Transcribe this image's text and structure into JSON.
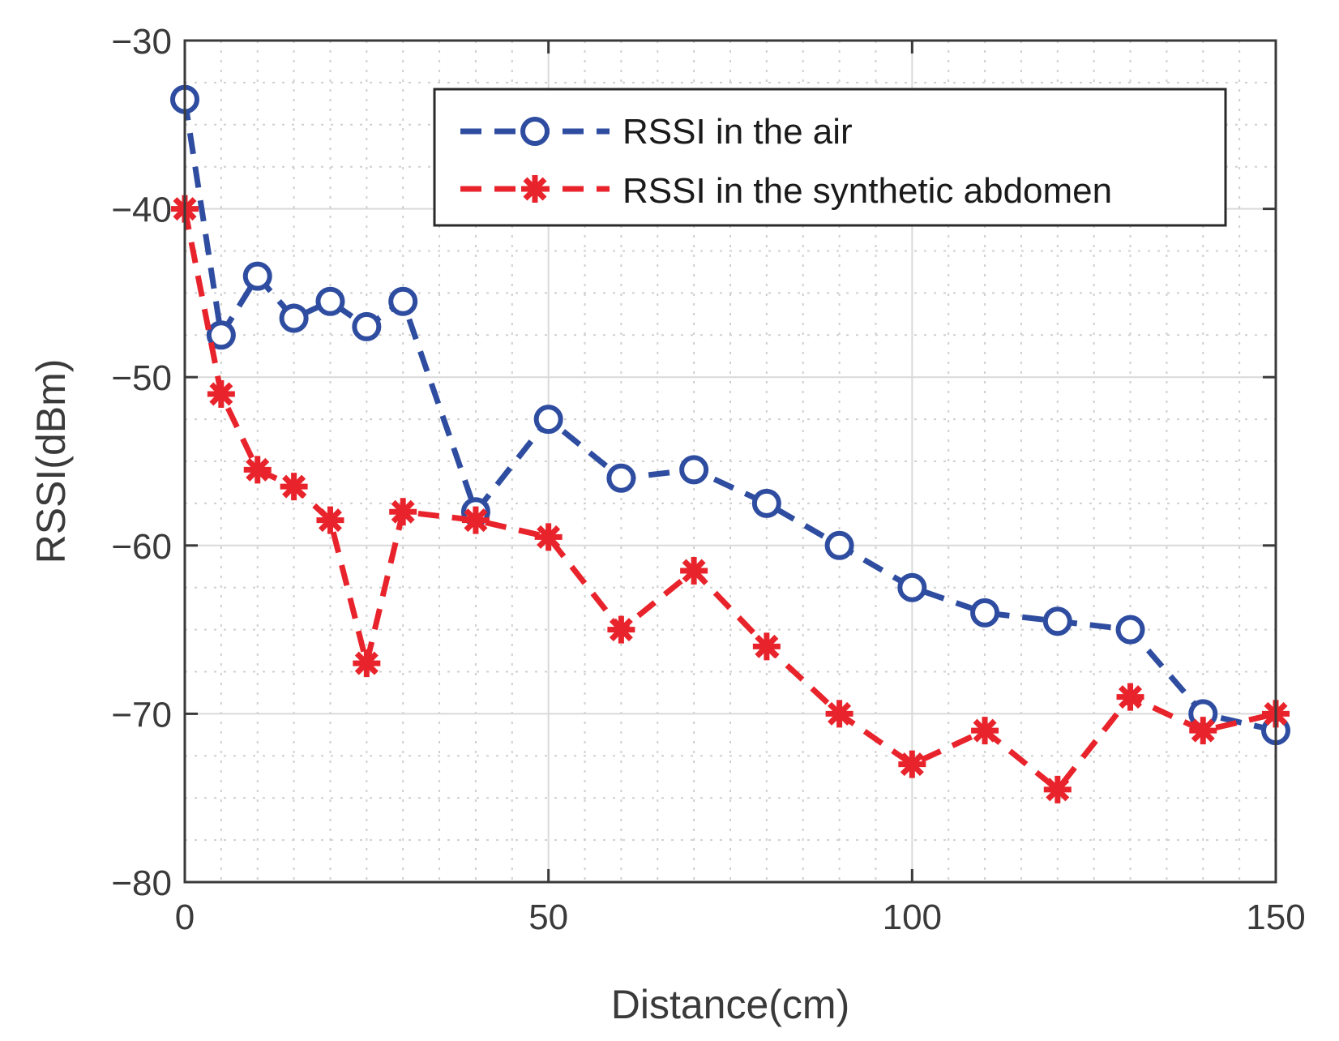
{
  "chart_data": {
    "type": "line",
    "title": "",
    "xlabel": "Distance(cm)",
    "ylabel": "RSSI(dBm)",
    "xlim": [
      0,
      150
    ],
    "ylim": [
      -80,
      -30
    ],
    "xticks": [
      0,
      50,
      100,
      150
    ],
    "xtick_labels": [
      "0",
      "50",
      "100",
      "150"
    ],
    "yticks": [
      -30,
      -40,
      -50,
      -60,
      -70,
      -80
    ],
    "ytick_labels": [
      "−30",
      "−40",
      "−50",
      "−60",
      "−70",
      "−80"
    ],
    "grid": true,
    "legend_position": "top-right",
    "series": [
      {
        "name": "RSSI in the air",
        "color": "#2f4da0",
        "marker": "circle",
        "line_style": "dashed",
        "x": [
          0,
          5,
          10,
          15,
          20,
          25,
          30,
          40,
          50,
          60,
          70,
          80,
          90,
          100,
          110,
          120,
          130,
          140,
          150
        ],
        "values": [
          -33.5,
          -47.5,
          -44,
          -46.5,
          -45.5,
          -47,
          -45.5,
          -58,
          -52.5,
          -56,
          -55.5,
          -57.5,
          -60,
          -62.5,
          -64,
          -64.5,
          -65,
          -70,
          -71
        ]
      },
      {
        "name": "RSSI in the synthetic abdomen",
        "color": "#e8232b",
        "marker": "asterisk",
        "line_style": "dashed",
        "x": [
          0,
          5,
          10,
          15,
          20,
          25,
          30,
          40,
          50,
          60,
          70,
          80,
          90,
          100,
          110,
          120,
          130,
          140,
          150
        ],
        "values": [
          -40,
          -51,
          -55.5,
          -56.5,
          -58.5,
          -67,
          -58,
          -58.5,
          -59.5,
          -65,
          -61.5,
          -66,
          -70,
          -73,
          -71,
          -74.5,
          -69,
          -71,
          -70
        ]
      }
    ]
  }
}
